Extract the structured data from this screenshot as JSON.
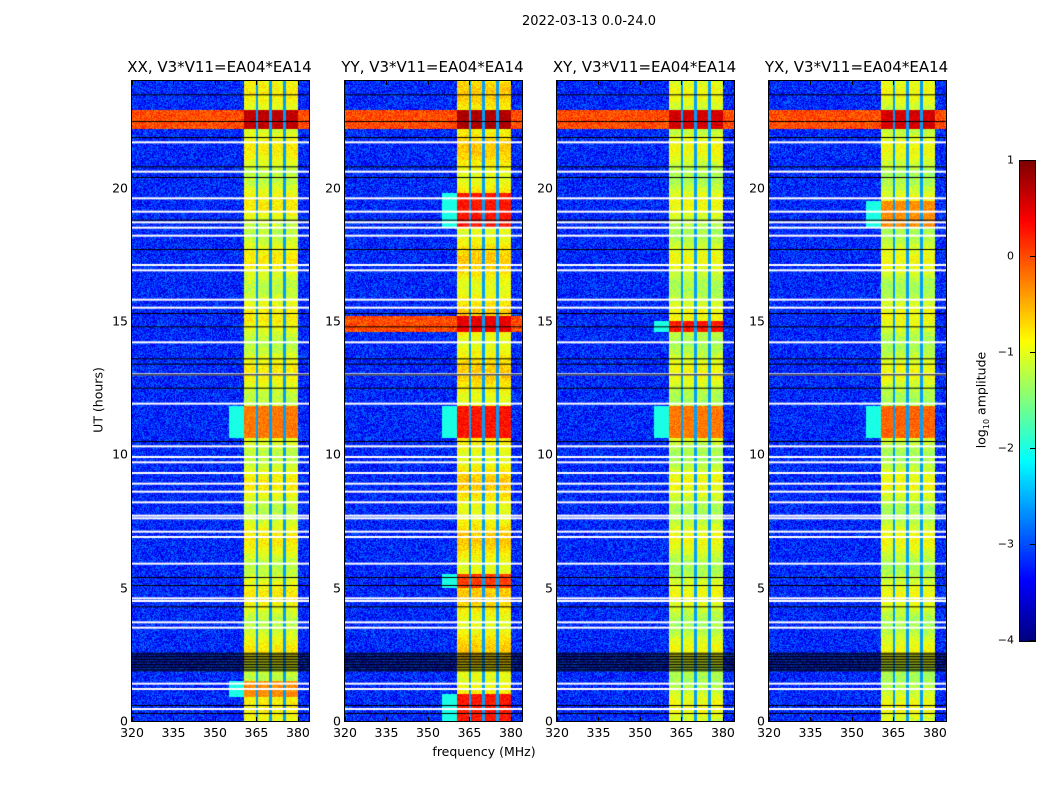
{
  "chart_data": {
    "type": "heatmap",
    "title": "2022-03-13 0.0-24.0",
    "xlabel": "frequency (MHz)",
    "ylabel": "UT (hours)",
    "xlim": [
      320,
      384
    ],
    "ylim": [
      0,
      24
    ],
    "xticks": [
      320,
      335,
      350,
      365,
      380
    ],
    "yticks": [
      0,
      5,
      10,
      15,
      20
    ],
    "panels": [
      {
        "title": "XX, V3*V11=EA04*EA14",
        "band_level": -1.0,
        "strong_times": [
          [
            22.2,
            22.9,
            0.6
          ],
          [
            10.6,
            11.8,
            -0.3
          ],
          [
            0.9,
            1.5,
            -0.4
          ]
        ]
      },
      {
        "title": "YY, V3*V11=EA04*EA14",
        "band_level": -0.8,
        "strong_times": [
          [
            22.2,
            22.9,
            0.7
          ],
          [
            10.6,
            11.8,
            0.2
          ],
          [
            18.5,
            19.8,
            0.2
          ],
          [
            0,
            1.0,
            0.2
          ],
          [
            14.6,
            15.2,
            0.4
          ],
          [
            5.0,
            5.5,
            0.0
          ]
        ]
      },
      {
        "title": "XY, V3*V11=EA04*EA14",
        "band_level": -1.1,
        "strong_times": [
          [
            22.2,
            22.9,
            0.5
          ],
          [
            10.6,
            11.8,
            -0.3
          ],
          [
            14.6,
            15.0,
            0.2
          ]
        ]
      },
      {
        "title": "YX, V3*V11=EA04*EA14",
        "band_level": -1.1,
        "strong_times": [
          [
            22.2,
            22.9,
            0.5
          ],
          [
            10.6,
            11.8,
            -0.2
          ],
          [
            18.5,
            19.5,
            -0.4
          ]
        ]
      }
    ],
    "band_mhz": [
      360.5,
      380
    ],
    "notch_mhz": [
      365.2,
      370.2,
      375.2
    ],
    "flagged_white_hours": [
      0.45,
      1.2,
      1.4,
      3.5,
      3.7,
      4.5,
      4.6,
      5.9,
      6.9,
      7.1,
      7.6,
      7.7,
      8.2,
      8.6,
      8.9,
      9.3,
      9.7,
      9.9,
      10.3,
      11.9,
      13.0,
      14.2,
      15.5,
      15.8,
      16.9,
      17.1,
      18.2,
      18.5,
      18.7,
      19.1,
      19.6,
      20.6,
      21.7
    ],
    "flagged_black_hours": [
      0.3,
      0.6,
      4.3,
      5.1,
      5.4,
      10.5,
      12.5,
      13.0,
      13.4,
      13.6,
      14.8,
      15.3,
      17.7,
      18.8,
      20.4,
      20.8,
      21.9,
      22.5,
      23.5
    ],
    "dense_black_range": [
      1.9,
      2.6
    ],
    "colorbar": {
      "label": "log10 amplitude",
      "label_main": "log",
      "label_sub": "10",
      "label_rest": " amplitude",
      "range": [
        -4,
        1
      ],
      "ticks": [
        "1",
        "0",
        "−1",
        "−2",
        "−3",
        "−4"
      ]
    }
  }
}
